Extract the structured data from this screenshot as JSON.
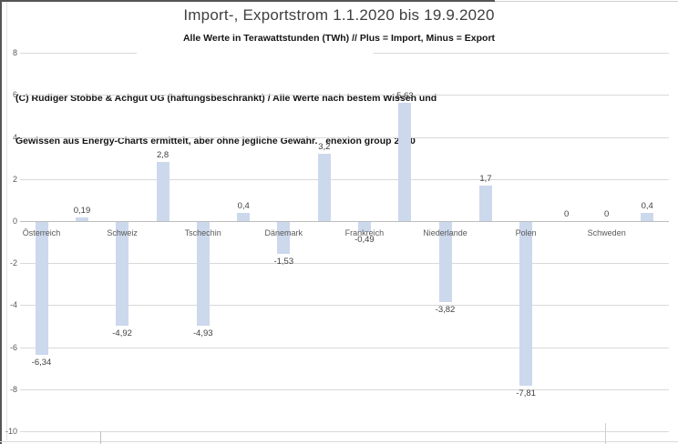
{
  "title": "Import-, Exportstrom 1.1.2020 bis 19.9.2020",
  "subtitle": "Alle Werte in Terawattstunden (TWh) // Plus = Import, Minus = Export",
  "note": {
    "line1": "(C) Rüdiger Stobbe & Achgut UG (haftungsbeschränkt) / Alle Werte nach bestem Wissen und",
    "line2": "Gewissen aus Energy-Charts ermittelt, aber ohne jegliche Gewähr.   enexion group 2020"
  },
  "chart_data": {
    "type": "bar",
    "title": "Import-, Exportstrom 1.1.2020 bis 19.9.2020",
    "subtitle": "Alle Werte in Terawattstunden (TWh) // Plus = Import, Minus = Export",
    "categories": [
      "Österreich",
      "Schweiz",
      "Tschechin",
      "Dänemark",
      "Frankreich",
      "Niederlande",
      "Polen",
      "Schweden"
    ],
    "series": [
      {
        "name": "Minus = Export",
        "values": [
          -6.34,
          -4.92,
          -4.93,
          -1.53,
          -0.49,
          -3.82,
          -7.81,
          0
        ],
        "labels": [
          "-6,34",
          "-4,92",
          "-4,93",
          "-1,53",
          "-0,49",
          "-3,82",
          "-7,81",
          "0"
        ]
      },
      {
        "name": "Plus = Import",
        "values": [
          0.19,
          2.8,
          0.4,
          3.2,
          5.63,
          1.7,
          0,
          0.4
        ],
        "labels": [
          "0,19",
          "2,8",
          "0,4",
          "3,2",
          "5,63",
          "1,7",
          "0",
          "0,4"
        ]
      }
    ],
    "xlabel": "",
    "ylabel": "",
    "ylim": [
      -10,
      8
    ],
    "ytick_labels": [
      "8",
      "6",
      "4",
      "2",
      "0",
      "-2",
      "-4",
      "-6",
      "-8",
      "-10"
    ],
    "grid": true,
    "legend": "none",
    "bar_color": "#ccd8ec",
    "gridline_color": "#d9d9d9",
    "axis_text_color": "#595959",
    "label_text_color": "#3f3f3f"
  }
}
